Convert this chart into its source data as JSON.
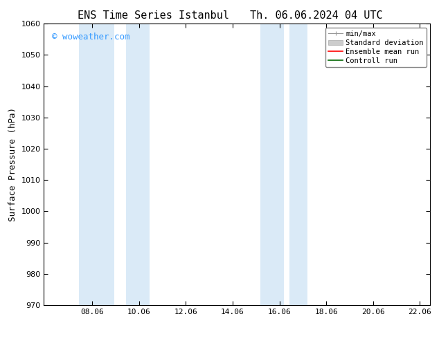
{
  "title_left": "ENS Time Series Istanbul",
  "title_right": "Th. 06.06.2024 04 UTC",
  "ylabel": "Surface Pressure (hPa)",
  "ylim": [
    970,
    1060
  ],
  "yticks": [
    970,
    980,
    990,
    1000,
    1010,
    1020,
    1030,
    1040,
    1050,
    1060
  ],
  "xlim": [
    6.0,
    22.5
  ],
  "xticks": [
    8.06,
    10.06,
    12.06,
    14.06,
    16.06,
    18.06,
    20.06,
    22.06
  ],
  "xticklabels": [
    "08.06",
    "10.06",
    "12.06",
    "14.06",
    "16.06",
    "18.06",
    "20.06",
    "22.06"
  ],
  "watermark": "© woweather.com",
  "watermark_color": "#3399ff",
  "bg_color": "#ffffff",
  "shaded_bands": [
    {
      "xmin": 7.5,
      "xmax": 9.0,
      "color": "#daeaf7"
    },
    {
      "xmin": 9.5,
      "xmax": 10.5,
      "color": "#daeaf7"
    },
    {
      "xmin": 15.25,
      "xmax": 16.25,
      "color": "#daeaf7"
    },
    {
      "xmin": 16.5,
      "xmax": 17.25,
      "color": "#daeaf7"
    }
  ],
  "legend_entries": [
    {
      "label": "min/max",
      "color": "#aaaaaa",
      "lw": 1.0
    },
    {
      "label": "Standard deviation",
      "color": "#cccccc",
      "lw": 5
    },
    {
      "label": "Ensemble mean run",
      "color": "#ff0000",
      "lw": 1.2
    },
    {
      "label": "Controll run",
      "color": "#006600",
      "lw": 1.2
    }
  ],
  "spine_color": "#000000",
  "tick_color": "#000000",
  "font_family": "monospace",
  "title_fontsize": 11,
  "label_fontsize": 9,
  "tick_fontsize": 8,
  "legend_fontsize": 7.5,
  "watermark_fontsize": 9
}
